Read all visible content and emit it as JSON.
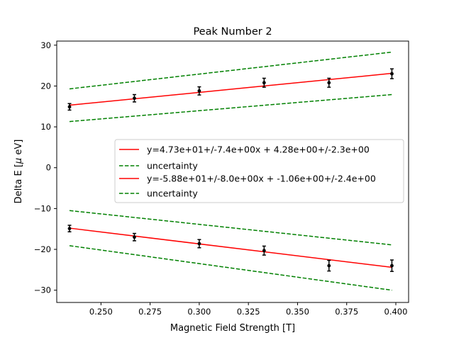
{
  "chart_data": {
    "type": "line",
    "title": "Peak Number 2",
    "xlabel": "Magnetic Field Strength [T]",
    "ylabel_prefix": "Delta E [",
    "ylabel_mu": "μ",
    "ylabel_suffix": " eV]",
    "xlim": [
      0.2275,
      0.4065
    ],
    "ylim": [
      -33,
      31
    ],
    "xticks": [
      0.25,
      0.275,
      0.3,
      0.325,
      0.35,
      0.375,
      0.4
    ],
    "xtick_labels": [
      "0.250",
      "0.275",
      "0.300",
      "0.325",
      "0.350",
      "0.375",
      "0.400"
    ],
    "yticks": [
      -30,
      -20,
      -10,
      0,
      10,
      20,
      30
    ],
    "ytick_labels": [
      "−30",
      "−20",
      "−10",
      "0",
      "10",
      "20",
      "30"
    ],
    "grid": false,
    "legend_position": "center-right",
    "legend": [
      {
        "label": "y=4.73e+01+/-7.4e+00x + 4.28e+00+/-2.3e+00",
        "style": "solid",
        "color": "#ff0000"
      },
      {
        "label": "uncertainty",
        "style": "dashed",
        "color": "#008000"
      },
      {
        "label": "y=-5.88e+01+/-8.0e+00x + -1.06e+00+/-2.4e+00",
        "style": "solid",
        "color": "#ff0000"
      },
      {
        "label": "uncertainty",
        "style": "dashed",
        "color": "#008000"
      }
    ],
    "series": [
      {
        "kind": "points",
        "color": "#000000",
        "x": [
          0.234,
          0.267,
          0.3,
          0.333,
          0.366,
          0.398
        ],
        "y": [
          14.9,
          17.0,
          18.8,
          20.8,
          20.8,
          23.0
        ],
        "yerr": [
          0.8,
          0.9,
          1.0,
          1.1,
          1.1,
          1.2
        ]
      },
      {
        "kind": "points",
        "color": "#000000",
        "x": [
          0.234,
          0.267,
          0.3,
          0.333,
          0.366,
          0.398
        ],
        "y": [
          -14.9,
          -17.0,
          -18.6,
          -20.3,
          -24.0,
          -24.0
        ],
        "yerr": [
          0.8,
          0.9,
          1.0,
          1.1,
          1.3,
          1.4
        ]
      },
      {
        "kind": "fit",
        "style": "solid",
        "color": "#ff0000",
        "x": [
          0.234,
          0.398
        ],
        "y": [
          15.3,
          23.1
        ]
      },
      {
        "kind": "fit",
        "style": "dashed",
        "color": "#008000",
        "x": [
          0.234,
          0.398
        ],
        "y": [
          19.3,
          28.3
        ]
      },
      {
        "kind": "fit",
        "style": "dashed",
        "color": "#008000",
        "x": [
          0.234,
          0.398
        ],
        "y": [
          11.3,
          17.9
        ]
      },
      {
        "kind": "fit",
        "style": "solid",
        "color": "#ff0000",
        "x": [
          0.234,
          0.398
        ],
        "y": [
          -14.8,
          -24.4
        ]
      },
      {
        "kind": "fit",
        "style": "dashed",
        "color": "#008000",
        "x": [
          0.234,
          0.398
        ],
        "y": [
          -10.5,
          -18.9
        ]
      },
      {
        "kind": "fit",
        "style": "dashed",
        "color": "#008000",
        "x": [
          0.234,
          0.398
        ],
        "y": [
          -19.1,
          -30.0
        ]
      }
    ]
  }
}
